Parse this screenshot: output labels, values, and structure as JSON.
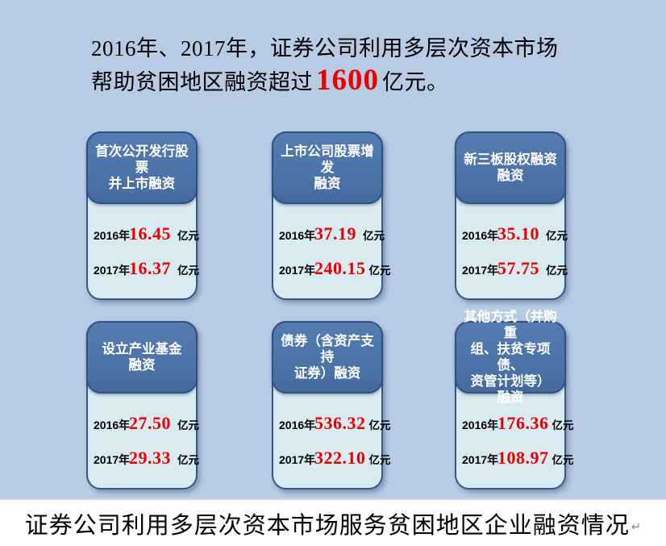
{
  "colors": {
    "background": "#b8cbe4",
    "card_header": "#4b72a6",
    "card_body": "#d9eaf1",
    "card_border": "#33588b",
    "value_red": "#e90000",
    "footer_background": "#ffffff"
  },
  "headline": {
    "line1": "2016年、2017年，证券公司利用多层次资本市场",
    "line2_prefix": "帮助贫困地区融资超过",
    "amount": "1600",
    "line2_suffix": "亿元。",
    "amount_color": "#e90000"
  },
  "cards": [
    {
      "id": "ipo",
      "title": "首次公开发行股票\n并上市融资",
      "rows": [
        {
          "year": "2016年",
          "value": "16.45",
          "unit": "亿元"
        },
        {
          "year": "2017年",
          "value": "16.37",
          "unit": "亿元"
        }
      ]
    },
    {
      "id": "seo",
      "title": "上市公司股票增发\n融资",
      "rows": [
        {
          "year": "2016年",
          "value": "37.19",
          "unit": "亿元"
        },
        {
          "year": "2017年",
          "value": "240.15",
          "unit": "亿元"
        }
      ]
    },
    {
      "id": "neeq",
      "title": "新三板股权融资\n融资",
      "rows": [
        {
          "year": "2016年",
          "value": "35.10",
          "unit": "亿元"
        },
        {
          "year": "2017年",
          "value": "57.75",
          "unit": "亿元"
        }
      ]
    },
    {
      "id": "industry-fund",
      "title": "设立产业基金\n融资",
      "rows": [
        {
          "year": "2016年",
          "value": "27.50",
          "unit": "亿元"
        },
        {
          "year": "2017年",
          "value": "29.33",
          "unit": "亿元"
        }
      ]
    },
    {
      "id": "bond",
      "title": "债券（含资产支持\n证券）融资",
      "rows": [
        {
          "year": "2016年",
          "value": "536.32",
          "unit": "亿元"
        },
        {
          "year": "2017年",
          "value": "322.10",
          "unit": "亿元"
        }
      ]
    },
    {
      "id": "other",
      "title": "其他方式（并购重\n组、扶贫专项债、\n资管计划等）\n融资",
      "rows": [
        {
          "year": "2016年",
          "value": "176.36",
          "unit": "亿元"
        },
        {
          "year": "2017年",
          "value": "108.97",
          "unit": "亿元"
        }
      ]
    }
  ],
  "caption": {
    "text": "证券公司利用多层次资本市场服务贫困地区企业融资情况",
    "paragraph_mark": "↵"
  },
  "chart_data": {
    "type": "table",
    "title": "证券公司利用多层次资本市场服务贫困地区企业融资情况",
    "subtitle": "2016年、2017年，证券公司利用多层次资本市场帮助贫困地区融资超过1600亿元。",
    "unit": "亿元",
    "categories": [
      "首次公开发行股票并上市融资",
      "上市公司股票增发融资",
      "新三板股权融资融资",
      "设立产业基金融资",
      "债券（含资产支持证券）融资",
      "其他方式（并购重组、扶贫专项债、资管计划等）融资"
    ],
    "series": [
      {
        "name": "2016年",
        "values": [
          16.45,
          37.19,
          35.1,
          27.5,
          536.32,
          176.36
        ]
      },
      {
        "name": "2017年",
        "values": [
          16.37,
          240.15,
          57.75,
          29.33,
          322.1,
          108.97
        ]
      }
    ],
    "highlight_total": 1600
  }
}
